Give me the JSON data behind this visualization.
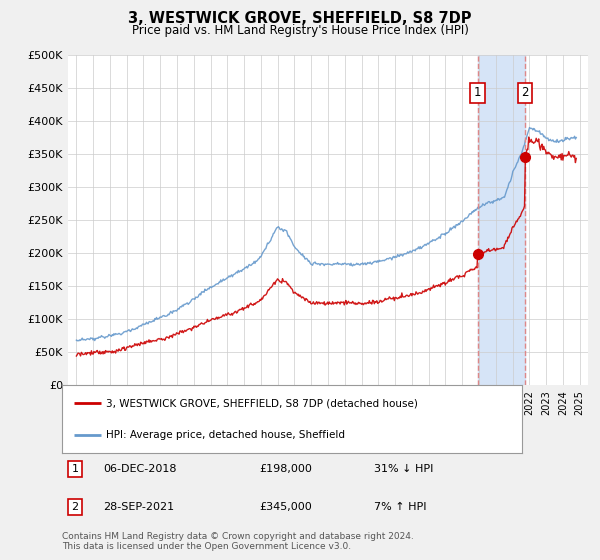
{
  "title": "3, WESTWICK GROVE, SHEFFIELD, S8 7DP",
  "subtitle": "Price paid vs. HM Land Registry's House Price Index (HPI)",
  "footer": "Contains HM Land Registry data © Crown copyright and database right 2024.\nThis data is licensed under the Open Government Licence v3.0.",
  "legend_line1": "3, WESTWICK GROVE, SHEFFIELD, S8 7DP (detached house)",
  "legend_line2": "HPI: Average price, detached house, Sheffield",
  "annotation1_date": "06-DEC-2018",
  "annotation1_price": "£198,000",
  "annotation1_hpi": "31% ↓ HPI",
  "annotation2_date": "28-SEP-2021",
  "annotation2_price": "£345,000",
  "annotation2_hpi": "7% ↑ HPI",
  "marker1_x": 2018.92,
  "marker1_y": 198000,
  "marker2_x": 2021.75,
  "marker2_y": 345000,
  "vline1_x": 2018.92,
  "vline2_x": 2021.75,
  "shade_color": "#d6e4f7",
  "red_color": "#cc0000",
  "blue_color": "#6699cc",
  "vline_color": "#dd8888",
  "ylim": [
    0,
    500000
  ],
  "yticks": [
    0,
    50000,
    100000,
    150000,
    200000,
    250000,
    300000,
    350000,
    400000,
    450000,
    500000
  ],
  "xlim_min": 1994.5,
  "xlim_max": 2025.5,
  "background_color": "#f0f0f0",
  "plot_bg": "#ffffff",
  "grid_color": "#cccccc"
}
